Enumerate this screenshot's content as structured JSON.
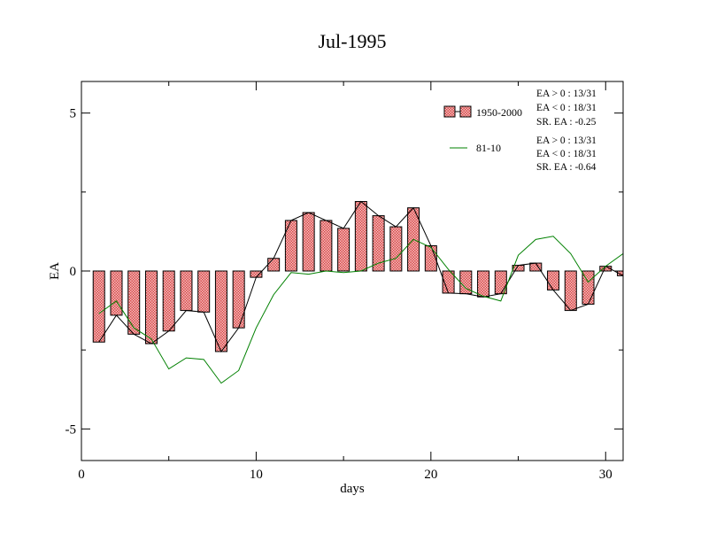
{
  "chart_data": {
    "type": "bar",
    "title": "Jul-1995",
    "xlabel": "days",
    "ylabel": "EA",
    "xlim": [
      0,
      31
    ],
    "ylim": [
      -6,
      6
    ],
    "xticks": [
      0,
      10,
      20,
      30
    ],
    "yticks": [
      -5,
      0,
      5
    ],
    "x": [
      1,
      2,
      3,
      4,
      5,
      6,
      7,
      8,
      9,
      10,
      11,
      12,
      13,
      14,
      15,
      16,
      17,
      18,
      19,
      20,
      21,
      22,
      23,
      24,
      25,
      26,
      27,
      28,
      29,
      30,
      31
    ],
    "series": [
      {
        "name": "1950-2000",
        "kind": "bar+line",
        "color": "#e06060",
        "line_color": "#000000",
        "values": [
          -2.25,
          -1.4,
          -2.0,
          -2.3,
          -1.9,
          -1.25,
          -1.3,
          -2.55,
          -1.8,
          -0.2,
          0.4,
          1.6,
          1.85,
          1.6,
          1.35,
          2.2,
          1.75,
          1.4,
          2.0,
          0.8,
          -0.7,
          -0.72,
          -0.82,
          -0.72,
          0.18,
          0.25,
          -0.6,
          -1.25,
          -1.05,
          0.15,
          -0.15
        ]
      },
      {
        "name": "81-10",
        "kind": "line",
        "color": "#008000",
        "values": [
          -1.35,
          -0.95,
          -1.8,
          -2.15,
          -3.1,
          -2.75,
          -2.8,
          -3.55,
          -3.15,
          -1.8,
          -0.75,
          -0.05,
          -0.1,
          0.0,
          -0.05,
          0.0,
          0.25,
          0.4,
          1.0,
          0.75,
          0.05,
          -0.55,
          -0.8,
          -0.95,
          0.5,
          1.0,
          1.1,
          0.55,
          -0.35,
          0.15,
          0.55
        ]
      }
    ],
    "legend": {
      "placement": "top-right",
      "stats_1950": [
        "EA > 0 : 13/31",
        "EA < 0 : 18/31",
        "SR. EA : -0.25"
      ],
      "stats_8110": [
        "EA > 0 : 13/31",
        "EA < 0 : 18/31",
        "SR. EA : -0.64"
      ]
    }
  }
}
